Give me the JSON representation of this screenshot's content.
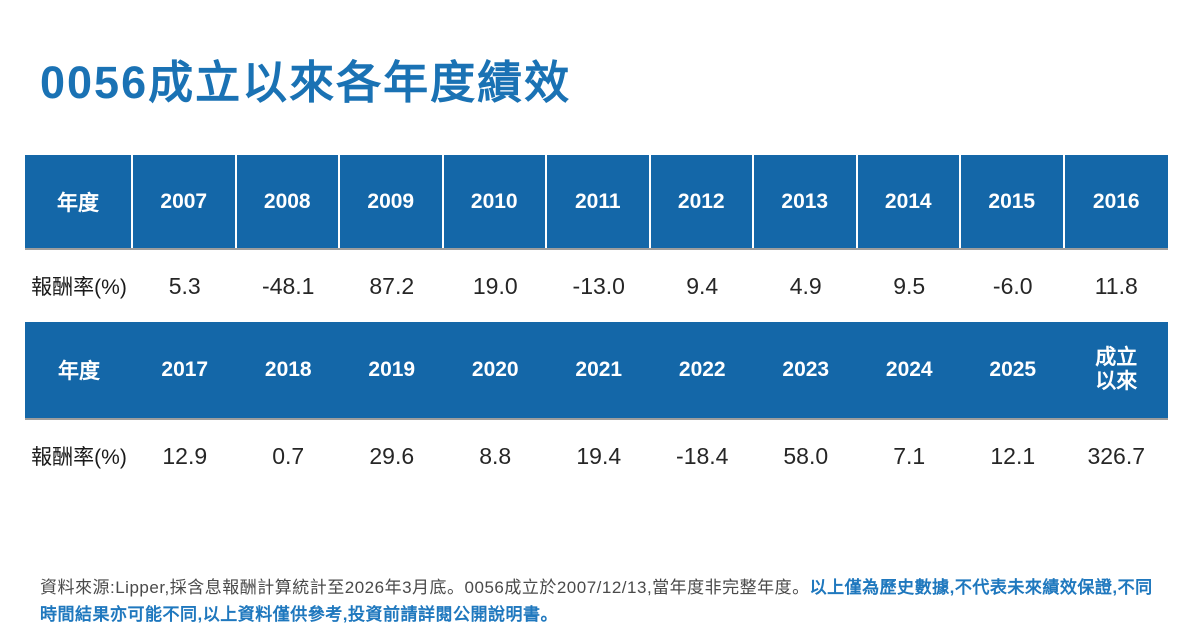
{
  "title": "0056成立以來各年度績效",
  "colors": {
    "title_blue": "#1a72b4",
    "header_blue": "#1467a8",
    "disclaimer_blue": "#1f78be",
    "source_gray": "#4a4a4a"
  },
  "table1": {
    "header": [
      "年度",
      "2007",
      "2008",
      "2009",
      "2010",
      "2011",
      "2012",
      "2013",
      "2014",
      "2015",
      "2016"
    ],
    "row_label": "報酬率(%)",
    "values": [
      "5.3",
      "-48.1",
      "87.2",
      "19.0",
      "-13.0",
      "9.4",
      "4.9",
      "9.5",
      "-6.0",
      "11.8"
    ]
  },
  "table2": {
    "header": [
      "年度",
      "2017",
      "2018",
      "2019",
      "2020",
      "2021",
      "2022",
      "2023",
      "2024",
      "2025",
      "成立\n以來"
    ],
    "row_label": "報酬率(%)",
    "values": [
      "12.9",
      "0.7",
      "29.6",
      "8.8",
      "19.4",
      "-18.4",
      "58.0",
      "7.1",
      "12.1",
      "326.7"
    ]
  },
  "footer": {
    "source_text": "資料來源:Lipper,採含息報酬計算統計至2026年3月底。0056成立於2007/12/13,當年度非完整年度。",
    "disclaimer_text": "以上僅為歷史數據,不代表未來績效保證,不同時間結果亦可能不同,以上資料僅供參考,投資前請詳閱公開說明書。"
  },
  "chart_data": {
    "type": "table",
    "title": "0056成立以來各年度績效",
    "row_label": "報酬率(%)",
    "categories": [
      "2007",
      "2008",
      "2009",
      "2010",
      "2011",
      "2012",
      "2013",
      "2014",
      "2015",
      "2016",
      "2017",
      "2018",
      "2019",
      "2020",
      "2021",
      "2022",
      "2023",
      "2024",
      "2025",
      "成立以來"
    ],
    "values": [
      5.3,
      -48.1,
      87.2,
      19.0,
      -13.0,
      9.4,
      4.9,
      9.5,
      -6.0,
      11.8,
      12.9,
      0.7,
      29.6,
      8.8,
      19.4,
      -18.4,
      58.0,
      7.1,
      12.1,
      326.7
    ]
  }
}
